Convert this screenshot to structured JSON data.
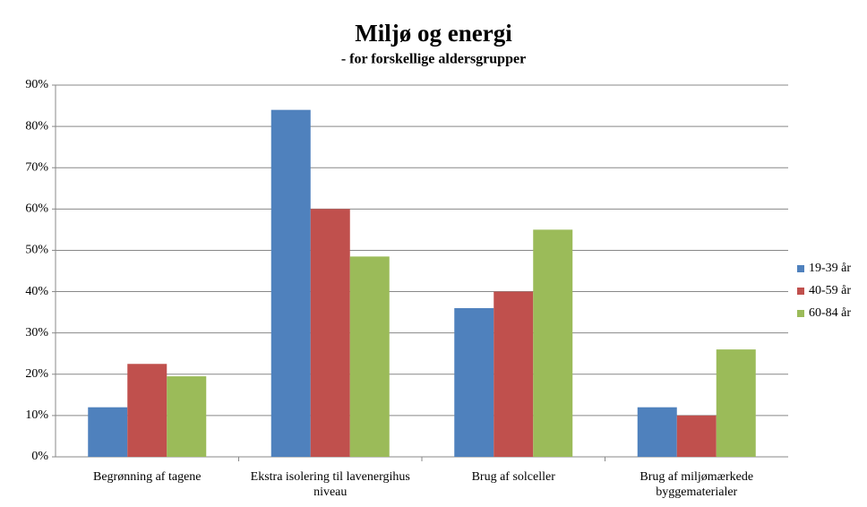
{
  "chart_data": {
    "type": "bar",
    "title": "Miljø og energi",
    "subtitle": "- for forskellige aldersgrupper",
    "categories": [
      "Begrønning af tagene",
      "Ekstra isolering til lavenergihus niveau",
      "Brug af solceller",
      "Brug af miljømærkede byggematerialer"
    ],
    "series": [
      {
        "name": "19-39 år",
        "color": "#4f81bd",
        "values": [
          12,
          84,
          36,
          12
        ]
      },
      {
        "name": "40-59 år",
        "color": "#c0504d",
        "values": [
          22.5,
          60,
          40,
          10
        ]
      },
      {
        "name": "60-84 år",
        "color": "#9bbb59",
        "values": [
          19.5,
          48.5,
          55,
          26
        ]
      }
    ],
    "ylim": [
      0,
      90
    ],
    "yticks": [
      {
        "value": 0,
        "label": "0%"
      },
      {
        "value": 10,
        "label": "10%"
      },
      {
        "value": 20,
        "label": "20%"
      },
      {
        "value": 30,
        "label": "30%"
      },
      {
        "value": 40,
        "label": "40%"
      },
      {
        "value": 50,
        "label": "50%"
      },
      {
        "value": 60,
        "label": "60%"
      },
      {
        "value": 70,
        "label": "70%"
      },
      {
        "value": 80,
        "label": "80%"
      },
      {
        "value": 90,
        "label": "90%"
      }
    ],
    "grid": true,
    "legend": "right"
  }
}
